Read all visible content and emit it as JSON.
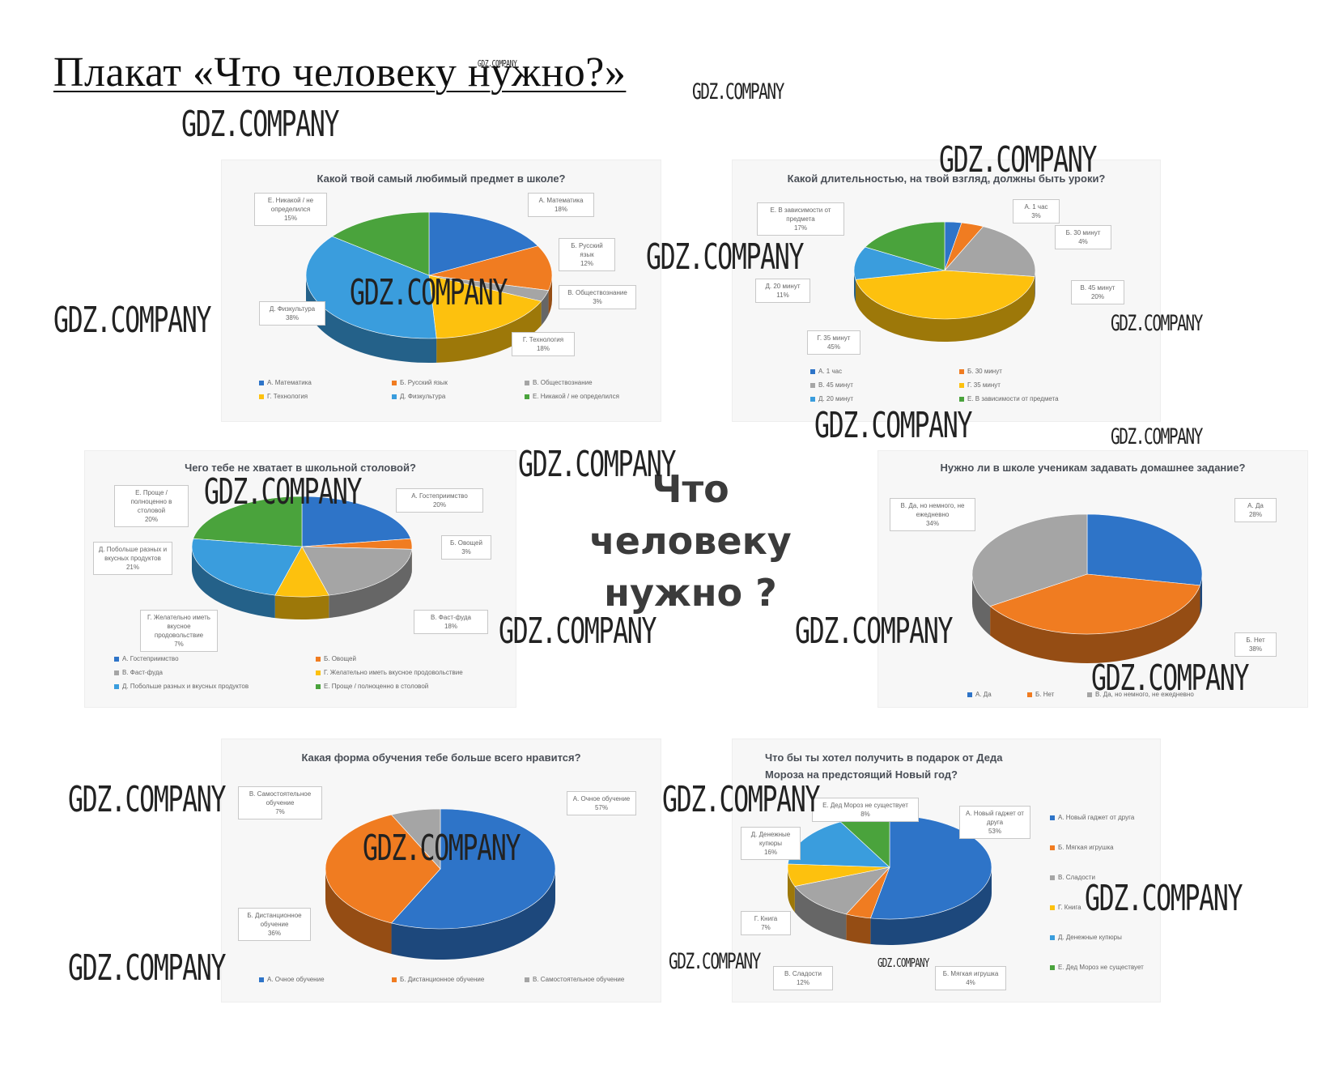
{
  "page": {
    "title": "Плакат «Что человеку нужно?»",
    "center_text": "Что человеку нужно ?"
  },
  "watermark": "GDZ.COMPANY",
  "colors": {
    "blue": "#2e74c8",
    "orange": "#f07c21",
    "gray": "#a5a5a5",
    "yellow": "#fdc10e",
    "sky": "#3a9ddd",
    "green": "#4aa33c",
    "dark": "#404040",
    "navy": "#1f4a8a"
  },
  "chart_data": [
    {
      "type": "pie",
      "title": "Какой твой самый любимый предмет в школе?",
      "categories": [
        "А. Математика",
        "Б. Русский язык",
        "В. Обществознание",
        "Г. Технология",
        "Д. Физкультура",
        "Е. Никакой / не определился"
      ],
      "values": [
        18,
        12,
        3,
        18,
        38,
        15
      ],
      "value_labels": [
        "18%",
        "12%",
        "3%",
        "18%",
        "38%",
        "15%"
      ],
      "colors": [
        "#2e74c8",
        "#f07c21",
        "#a5a5a5",
        "#fdc10e",
        "#3a9ddd",
        "#4aa33c"
      ],
      "legend_position": "bottom"
    },
    {
      "type": "pie",
      "title": "Какой длительностью, на твой взгляд, должны быть уроки?",
      "categories": [
        "А. 1 час",
        "Б. 30 минут",
        "В. 45 минут",
        "Г. 35 минут",
        "Д. 20 минут",
        "Е. В зависимости от предмета"
      ],
      "values": [
        3,
        4,
        20,
        45,
        11,
        17
      ],
      "value_labels": [
        "3%",
        "4%",
        "20%",
        "45%",
        "11%",
        "17%"
      ],
      "colors": [
        "#2e74c8",
        "#f07c21",
        "#a5a5a5",
        "#fdc10e",
        "#3a9ddd",
        "#4aa33c"
      ],
      "legend_position": "bottom"
    },
    {
      "type": "pie",
      "title": "Чего тебе не хватает в школьной столовой?",
      "categories": [
        "А. Гостеприимство",
        "Б. Овощей",
        "В. Фаст-фуда",
        "Г. Желательно иметь вкусное продовольствие",
        "Д. Побольше разных и вкусных продуктов",
        "Е. Проще / полноценно в столовой"
      ],
      "values": [
        20,
        3,
        18,
        7,
        21,
        20
      ],
      "value_labels": [
        "20%",
        "3%",
        "18%",
        "7%",
        "21%",
        "20%"
      ],
      "colors": [
        "#2e74c8",
        "#f07c21",
        "#a5a5a5",
        "#fdc10e",
        "#3a9ddd",
        "#4aa33c"
      ],
      "legend_position": "bottom"
    },
    {
      "type": "pie",
      "title": "Нужно ли в школе ученикам задавать домашнее задание?",
      "categories": [
        "А. Да",
        "Б. Нет",
        "В. Да, но немного, не ежедневно"
      ],
      "values": [
        28,
        38,
        34
      ],
      "value_labels": [
        "28%",
        "38%",
        "34%"
      ],
      "colors": [
        "#2e74c8",
        "#f07c21",
        "#a5a5a5"
      ],
      "legend_position": "bottom"
    },
    {
      "type": "pie",
      "title": "Какая форма обучения тебе больше всего нравится?",
      "categories": [
        "А. Очное обучение",
        "Б. Дистанционное обучение",
        "В. Самостоятельное обучение"
      ],
      "values": [
        57,
        36,
        7
      ],
      "value_labels": [
        "57%",
        "36%",
        "7%"
      ],
      "colors": [
        "#2e74c8",
        "#f07c21",
        "#a5a5a5"
      ],
      "legend_position": "bottom"
    },
    {
      "type": "pie",
      "title": "Что бы ты хотел получить в подарок от Деда Мороза на предстоящий Новый год?",
      "categories": [
        "А. Новый гаджет от друга",
        "Б. Мягкая игрушка",
        "В. Сладости",
        "Г. Книга",
        "Д. Денежные купюры",
        "Е. Дед Мороз не существует"
      ],
      "values": [
        53,
        4,
        12,
        7,
        16,
        8
      ],
      "value_labels": [
        "53%",
        "4%",
        "12%",
        "7%",
        "16%",
        "8%"
      ],
      "colors": [
        "#2e74c8",
        "#f07c21",
        "#a5a5a5",
        "#fdc10e",
        "#3a9ddd",
        "#4aa33c"
      ],
      "legend_position": "right"
    }
  ]
}
